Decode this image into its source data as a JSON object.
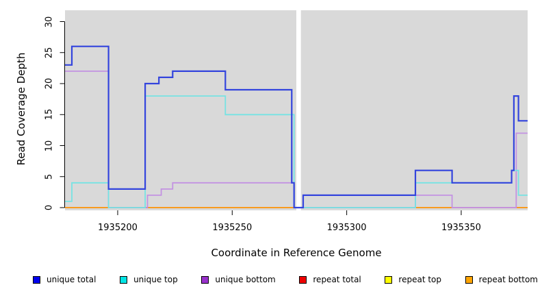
{
  "figure": {
    "x_axis_title": "Coordinate in Reference Genome",
    "y_axis_title": "Read Coverage Depth"
  },
  "chart_data": {
    "type": "line",
    "step": true,
    "title": "",
    "xlabel": "Coordinate in Reference Genome",
    "ylabel": "Read Coverage Depth",
    "xlim": [
      1935177,
      1935379
    ],
    "ylim": [
      0,
      30
    ],
    "grid": false,
    "plot_bg": "#D9D9D9",
    "x_ticks": [
      {
        "value": 1935200,
        "label": "1935200"
      },
      {
        "value": 1935250,
        "label": "1935250"
      },
      {
        "value": 1935300,
        "label": "1935300"
      },
      {
        "value": 1935350,
        "label": "1935350"
      }
    ],
    "y_ticks": [
      {
        "value": 0,
        "label": "0"
      },
      {
        "value": 5,
        "label": "5"
      },
      {
        "value": 10,
        "label": "10"
      },
      {
        "value": 15,
        "label": "15"
      },
      {
        "value": 20,
        "label": "20"
      },
      {
        "value": 25,
        "label": "25"
      },
      {
        "value": 30,
        "label": "30"
      }
    ],
    "no_data_gap": {
      "from": 1935278,
      "to": 1935280
    },
    "series": [
      {
        "name": "repeat-top",
        "label": "repeat top",
        "color": "#FFFF00",
        "width": 1.6,
        "points": [
          [
            1935177,
            0
          ],
          [
            1935379,
            0
          ]
        ]
      },
      {
        "name": "repeat-total",
        "label": "repeat total",
        "color": "#DD2222",
        "width": 1.6,
        "points": [
          [
            1935177,
            0
          ],
          [
            1935379,
            0
          ]
        ]
      },
      {
        "name": "repeat-bottom",
        "label": "repeat bottom",
        "color": "#FFA011",
        "width": 1.6,
        "points": [
          [
            1935177,
            0
          ],
          [
            1935379,
            0
          ]
        ]
      },
      {
        "name": "baseline-segment-red",
        "label": "",
        "color": "#CC3366",
        "width": 1.8,
        "points": [
          [
            1935196,
            0
          ],
          [
            1935213,
            0
          ]
        ]
      },
      {
        "name": "baseline-segment-green",
        "label": "",
        "color": "#8FD48F",
        "width": 1.8,
        "points": [
          [
            1935280,
            0
          ],
          [
            1935330,
            0
          ]
        ]
      },
      {
        "name": "baseline-segment-mauve",
        "label": "",
        "color": "#C98BCB",
        "width": 1.8,
        "points": [
          [
            1935346,
            0
          ],
          [
            1935374,
            0
          ]
        ]
      },
      {
        "name": "unique-bottom",
        "label": "unique bottom",
        "color": "#C392E2",
        "width": 1.8,
        "points": [
          [
            1935177,
            22
          ],
          [
            1935196,
            0
          ],
          [
            1935213,
            2
          ],
          [
            1935219,
            3
          ],
          [
            1935224,
            4
          ],
          [
            1935277,
            0
          ],
          [
            1935330,
            2
          ],
          [
            1935346,
            0
          ],
          [
            1935374,
            12
          ],
          [
            1935379,
            12
          ]
        ]
      },
      {
        "name": "unique-top",
        "label": "unique top",
        "color": "#76E3E3",
        "width": 1.8,
        "points": [
          [
            1935177,
            1
          ],
          [
            1935180,
            4
          ],
          [
            1935196,
            0
          ],
          [
            1935212,
            18
          ],
          [
            1935247,
            15
          ],
          [
            1935277,
            0
          ],
          [
            1935330,
            4
          ],
          [
            1935372,
            6
          ],
          [
            1935375,
            2
          ],
          [
            1935379,
            2
          ]
        ]
      },
      {
        "name": "unique-total",
        "label": "unique total",
        "color": "#3344DD",
        "width": 2.2,
        "points": [
          [
            1935177,
            23
          ],
          [
            1935180,
            26
          ],
          [
            1935196,
            3
          ],
          [
            1935212,
            20
          ],
          [
            1935218,
            21
          ],
          [
            1935224,
            22
          ],
          [
            1935247,
            19
          ],
          [
            1935276,
            4
          ],
          [
            1935277,
            0
          ],
          [
            1935281,
            2
          ],
          [
            1935330,
            6
          ],
          [
            1935346,
            4
          ],
          [
            1935372,
            6
          ],
          [
            1935373,
            18
          ],
          [
            1935375,
            14
          ],
          [
            1935379,
            14
          ]
        ]
      }
    ],
    "legend": [
      {
        "label": "unique total",
        "color": "#0000EE"
      },
      {
        "label": "unique top",
        "color": "#00E5E5"
      },
      {
        "label": "unique bottom",
        "color": "#9932CC"
      },
      {
        "label": "repeat total",
        "color": "#EE0000"
      },
      {
        "label": "repeat top",
        "color": "#FFFF00"
      },
      {
        "label": "repeat bottom",
        "color": "#FFA500"
      }
    ],
    "legend_position": "bottom"
  }
}
